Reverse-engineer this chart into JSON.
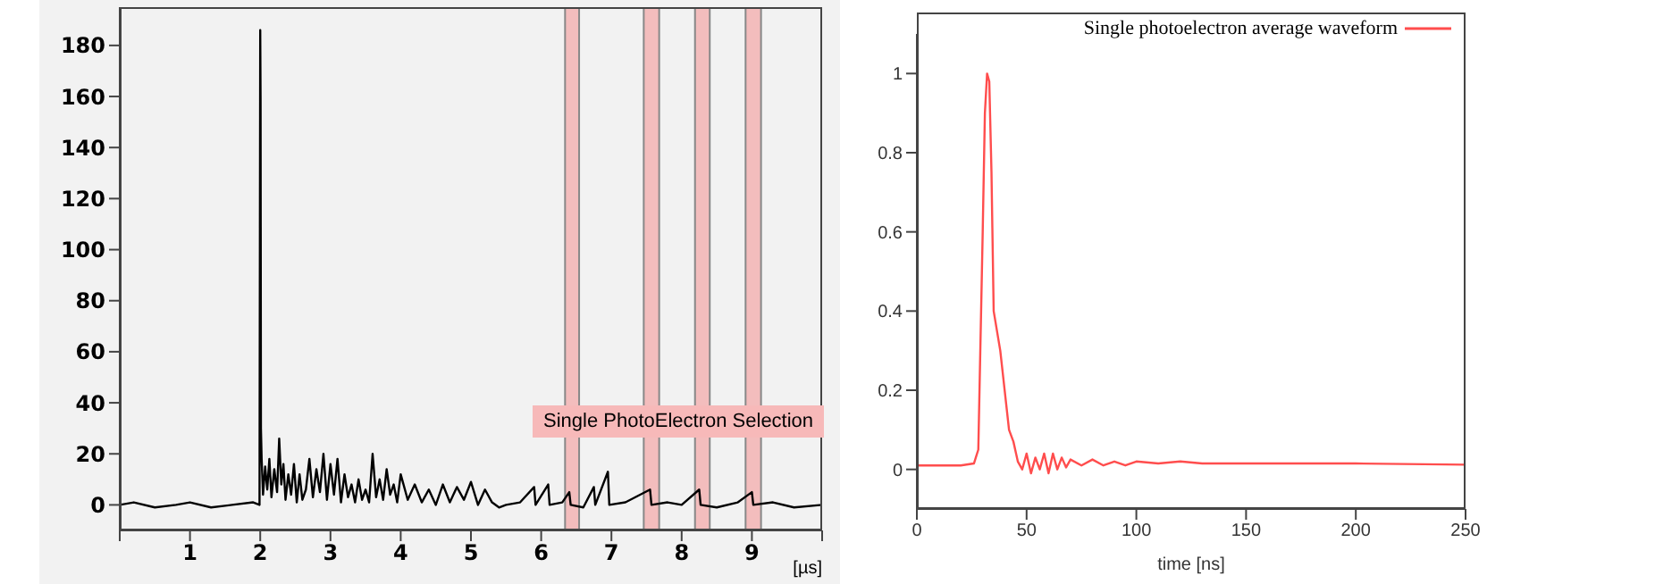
{
  "chart_data": [
    {
      "type": "line",
      "xlabel": "[µs]",
      "series": [
        {
          "color": "#000000",
          "x": [
            0,
            0.2,
            0.5,
            0.8,
            1.0,
            1.3,
            1.6,
            1.9,
            1.99,
            2.0,
            2.005,
            2.01,
            2.02,
            2.04,
            2.07,
            2.1,
            2.13,
            2.16,
            2.2,
            2.24,
            2.27,
            2.3,
            2.33,
            2.36,
            2.4,
            2.44,
            2.48,
            2.52,
            2.56,
            2.6,
            2.65,
            2.7,
            2.75,
            2.8,
            2.85,
            2.9,
            2.95,
            3.0,
            3.05,
            3.1,
            3.15,
            3.2,
            3.25,
            3.3,
            3.35,
            3.4,
            3.45,
            3.5,
            3.55,
            3.6,
            3.65,
            3.7,
            3.75,
            3.8,
            3.85,
            3.9,
            3.95,
            4.0,
            4.1,
            4.2,
            4.3,
            4.4,
            4.5,
            4.6,
            4.7,
            4.8,
            4.9,
            5.0,
            5.1,
            5.2,
            5.3,
            5.4,
            5.5,
            5.7,
            5.9,
            5.92,
            6.1,
            6.12,
            6.3,
            6.4,
            6.42,
            6.6,
            6.75,
            6.77,
            6.95,
            6.97,
            7.2,
            7.55,
            7.57,
            7.8,
            8.0,
            8.25,
            8.27,
            8.5,
            8.8,
            9.0,
            9.02,
            9.3,
            9.6,
            10.0
          ],
          "values": [
            0,
            1,
            -1,
            0,
            1,
            -1,
            0,
            1,
            0,
            186,
            158,
            30,
            18,
            4,
            15,
            6,
            18,
            3,
            14,
            5,
            26,
            8,
            16,
            2,
            12,
            4,
            16,
            1,
            12,
            2,
            6,
            18,
            3,
            14,
            5,
            20,
            2,
            16,
            4,
            18,
            1,
            12,
            3,
            8,
            1,
            10,
            2,
            6,
            1,
            20,
            3,
            10,
            2,
            14,
            4,
            8,
            1,
            12,
            2,
            8,
            1,
            6,
            0,
            8,
            1,
            7,
            2,
            9,
            0,
            6,
            1,
            -1,
            0,
            1,
            7,
            0,
            8,
            0,
            1,
            5,
            0,
            -1,
            7,
            0,
            13,
            0,
            1,
            6,
            0,
            1,
            0,
            6,
            0,
            -1,
            1,
            5,
            0,
            1,
            -1,
            0
          ]
        }
      ],
      "xlim": [
        0,
        10
      ],
      "ylim": [
        -10,
        195
      ],
      "xticks": [
        {
          "value": 0,
          "label": null
        },
        1,
        2,
        3,
        4,
        5,
        6,
        7,
        8,
        9,
        {
          "value": 10,
          "label": null
        }
      ],
      "yticks": [
        0,
        20,
        40,
        60,
        80,
        100,
        120,
        140,
        160,
        180
      ],
      "bands": [
        {
          "axis": "x",
          "from": 6.34,
          "to": 6.54,
          "label": null,
          "color": "#f4a6a6"
        },
        {
          "axis": "x",
          "from": 7.46,
          "to": 7.68,
          "label": null,
          "color": "#f4a6a6"
        },
        {
          "axis": "x",
          "from": 8.19,
          "to": 8.4,
          "label": null,
          "color": "#f4a6a6"
        },
        {
          "axis": "x",
          "from": 8.91,
          "to": 9.13,
          "label": null,
          "color": "#f4a6a6"
        }
      ],
      "annotations": [
        "Single PhotoElectron Selection"
      ],
      "grid": false,
      "legend": false
    },
    {
      "type": "line",
      "xlabel": "time [ns]",
      "series": [
        {
          "name": "Single photoelectron average waveform",
          "color": "#ff4d4d",
          "x": [
            0,
            10,
            20,
            26,
            28,
            30,
            31,
            32,
            33,
            34,
            35,
            38,
            42,
            44,
            46,
            48,
            50,
            52,
            54,
            56,
            58,
            60,
            62,
            64,
            66,
            68,
            70,
            75,
            80,
            85,
            90,
            95,
            100,
            110,
            120,
            130,
            150,
            200,
            250
          ],
          "values": [
            0.01,
            0.01,
            0.01,
            0.015,
            0.05,
            0.6,
            0.9,
            1.0,
            0.98,
            0.75,
            0.4,
            0.3,
            0.1,
            0.07,
            0.02,
            0.0,
            0.04,
            -0.01,
            0.03,
            0.0,
            0.04,
            -0.01,
            0.04,
            0.0,
            0.03,
            0.005,
            0.025,
            0.01,
            0.025,
            0.01,
            0.02,
            0.01,
            0.02,
            0.015,
            0.02,
            0.015,
            0.015,
            0.015,
            0.012
          ]
        }
      ],
      "xlim": [
        0,
        250
      ],
      "ylim": [
        -0.1,
        1.1
      ],
      "xticks": [
        0,
        50,
        100,
        150,
        200,
        250
      ],
      "yticks": [
        0,
        0.2,
        0.4,
        0.6,
        0.8,
        1
      ],
      "grid": false,
      "legend": "top right"
    }
  ]
}
